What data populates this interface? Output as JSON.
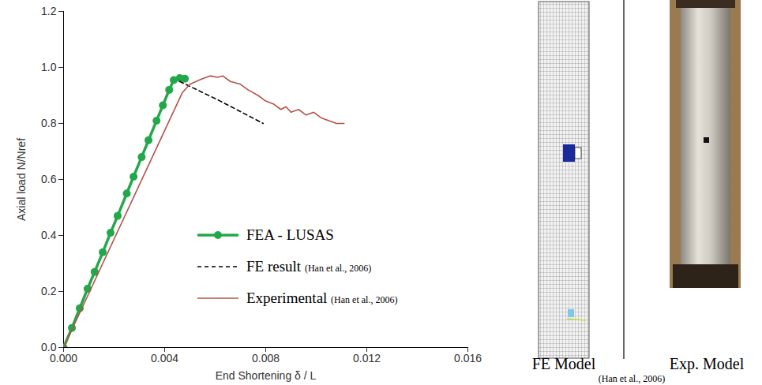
{
  "chart_data": {
    "type": "line",
    "x_label": "End Shortening δ / L",
    "y_label": "Axial load N/Nref",
    "xlim": [
      0,
      0.016
    ],
    "xticks": [
      {
        "value": 0,
        "label": "0.000"
      },
      {
        "value": 0.004,
        "label": "0.004"
      },
      {
        "value": 0.008,
        "label": "0.008"
      },
      {
        "value": 0.012,
        "label": "0.012"
      },
      {
        "value": 0.016,
        "label": "0.016"
      }
    ],
    "ylim": [
      0,
      1.2
    ],
    "yticks": [
      {
        "value": 0,
        "label": "0.0"
      },
      {
        "value": 0.2,
        "label": "0.2"
      },
      {
        "value": 0.4,
        "label": "0.4"
      },
      {
        "value": 0.6,
        "label": "0.6"
      },
      {
        "value": 0.8,
        "label": "0.8"
      },
      {
        "value": 1,
        "label": "1.0"
      },
      {
        "value": 1.2,
        "label": "1.2"
      }
    ],
    "grid": false,
    "legend": "center",
    "series": [
      {
        "name": "FEA - LUSAS",
        "color": "#22a84a",
        "marker": "circle",
        "line_style": "solid",
        "x": [
          0,
          0.00033,
          0.00064,
          0.00095,
          0.00123,
          0.00155,
          0.00186,
          0.00214,
          0.0025,
          0.00277,
          0.00309,
          0.00336,
          0.00368,
          0.00393,
          0.00418,
          0.00436,
          0.0046,
          0.0048
        ],
        "values": [
          0,
          0.07,
          0.14,
          0.21,
          0.27,
          0.34,
          0.41,
          0.47,
          0.55,
          0.61,
          0.68,
          0.74,
          0.81,
          0.865,
          0.92,
          0.955,
          0.962,
          0.96
        ]
      },
      {
        "name": "FE result (Han et al., 2006)",
        "color": "#000000",
        "line_style": "dashed",
        "x": [
          0.0046,
          0.0062,
          0.0079
        ],
        "values": [
          0.95,
          0.88,
          0.8
        ]
      },
      {
        "name": "Experimental (Han et al., 2006)",
        "color": "#b5524a",
        "line_style": "solid",
        "x": [
          0,
          0.0047,
          0.005,
          0.0055,
          0.0058,
          0.0061,
          0.0063,
          0.0066,
          0.007,
          0.0073,
          0.0077,
          0.008,
          0.0083,
          0.0086,
          0.0088,
          0.009,
          0.0093,
          0.0096,
          0.0099,
          0.0102,
          0.0105,
          0.0108,
          0.0111
        ],
        "values": [
          0,
          0.91,
          0.94,
          0.96,
          0.97,
          0.965,
          0.97,
          0.95,
          0.94,
          0.92,
          0.9,
          0.88,
          0.87,
          0.85,
          0.86,
          0.84,
          0.85,
          0.83,
          0.84,
          0.82,
          0.81,
          0.8,
          0.8
        ]
      }
    ]
  },
  "figure_labels": {
    "fe_model": "FE Model",
    "exp_model": "Exp. Model",
    "source": "(Han et al., 2006)"
  }
}
